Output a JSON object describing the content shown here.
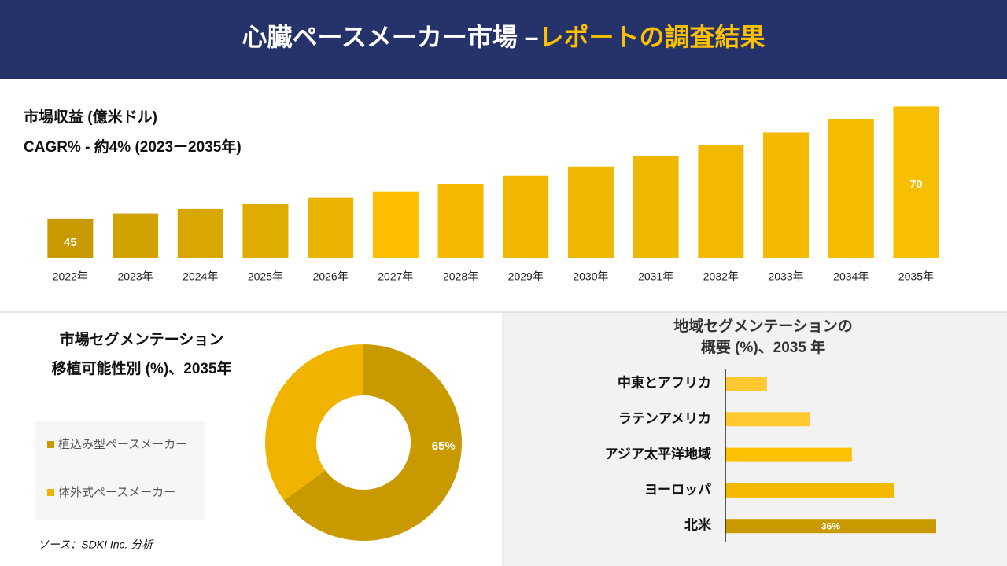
{
  "header": {
    "title": "心臓ペースメーカー市場 –",
    "title_highlight": "レポートの調査結果"
  },
  "source": "ソース：SDKI Inc. 分析",
  "chart_data": [
    {
      "type": "bar",
      "title": "市場収益 (億米ドル)",
      "subtitle": "CAGR% - 約4% (2023ー2035年)",
      "categories": [
        "2022年",
        "2023年",
        "2024年",
        "2025年",
        "2026年",
        "2027年",
        "2028年",
        "2029年",
        "2030年",
        "2031年",
        "2032年",
        "2033年",
        "2034年",
        "2035年"
      ],
      "values": [
        45,
        46.1,
        47.1,
        48.2,
        49.6,
        51,
        52.7,
        54.5,
        56.6,
        58.9,
        61.4,
        64.2,
        67.2,
        70
      ],
      "value_labels": [
        "45",
        null,
        null,
        null,
        null,
        null,
        null,
        null,
        null,
        null,
        null,
        null,
        null,
        "70"
      ],
      "colors": [
        "#c89a00",
        "#d2a200",
        "#d8a800",
        "#deac00",
        "#eab400",
        "#fcc000",
        "#f4b900",
        "#f2b800",
        "#f0b700",
        "#f0b700",
        "#f2b900",
        "#f4ba00",
        "#f6bc00",
        "#f8be00"
      ],
      "ylim": [
        36.2,
        72
      ]
    },
    {
      "type": "donut",
      "title": [
        "市場セグメンテーション",
        "移植可能性別 (%)、2035年"
      ],
      "categories": [
        "植込み型ペースメーカー",
        "体外式ペースメーカー"
      ],
      "values": [
        65,
        35
      ],
      "value_labels": [
        "65%",
        null
      ],
      "colors": [
        "#c89a00",
        "#f0b400"
      ]
    },
    {
      "type": "hbar",
      "title": [
        "地域セグメンテーションの",
        "概要 (%)、2035 年"
      ],
      "categories": [
        "中東とアフリカ",
        "ラテンアメリカ",
        "アジア太平洋地域",
        "ヨーロッパ",
        "北米"
      ],
      "values": [
        7.1,
        14.4,
        21.6,
        28.8,
        36
      ],
      "value_labels": [
        null,
        null,
        null,
        null,
        "36%"
      ],
      "colors": [
        "#fdc830",
        "#fdc830",
        "#fcc200",
        "#f4b800",
        "#c89a00"
      ],
      "xlim": [
        0,
        36
      ]
    }
  ]
}
